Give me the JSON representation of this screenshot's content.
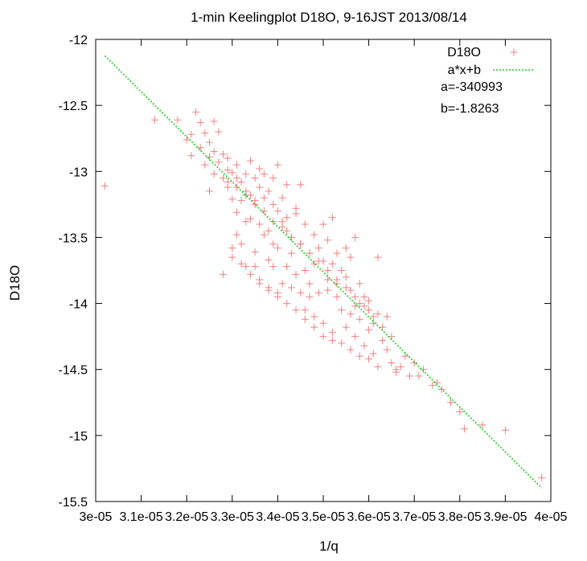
{
  "chart_data": {
    "type": "scatter",
    "title": "1-min Keelingplot D18O, 9-16JST 2013/08/14",
    "xlabel": "1/q",
    "ylabel": "D18O",
    "xlim": [
      3e-05,
      4e-05
    ],
    "ylim": [
      -15.5,
      -12.0
    ],
    "x_tick_values": [
      3e-05,
      3.1e-05,
      3.2e-05,
      3.3e-05,
      3.4e-05,
      3.5e-05,
      3.6e-05,
      3.7e-05,
      3.8e-05,
      3.9e-05,
      4e-05
    ],
    "x_tick_labels": [
      "3e-05",
      "3.1e-05",
      "3.2e-05",
      "3.3e-05",
      "3.4e-05",
      "3.5e-05",
      "3.6e-05",
      "3.7e-05",
      "3.8e-05",
      "3.9e-05",
      "4e-05"
    ],
    "y_tick_values": [
      -12.0,
      -12.5,
      -13.0,
      -13.5,
      -14.0,
      -14.5,
      -15.0,
      -15.5
    ],
    "y_tick_labels": [
      "-12",
      "-12.5",
      "-13",
      "-13.5",
      "-14",
      "-14.5",
      "-15",
      "-15.5"
    ],
    "grid": false,
    "legend_position": "top-right",
    "series": [
      {
        "name": "D18O",
        "mark": "plus",
        "color": "#f08080",
        "x": [
          3.02e-05,
          3.13e-05,
          3.18e-05,
          3.2e-05,
          3.21e-05,
          3.22e-05,
          3.23e-05,
          3.23e-05,
          3.24e-05,
          3.25e-05,
          3.25e-05,
          3.26e-05,
          3.26e-05,
          3.27e-05,
          3.27e-05,
          3.28e-05,
          3.28e-05,
          3.29e-05,
          3.29e-05,
          3.29e-05,
          3.3e-05,
          3.3e-05,
          3.3e-05,
          3.31e-05,
          3.31e-05,
          3.31e-05,
          3.32e-05,
          3.32e-05,
          3.32e-05,
          3.33e-05,
          3.33e-05,
          3.33e-05,
          3.34e-05,
          3.34e-05,
          3.34e-05,
          3.35e-05,
          3.35e-05,
          3.35e-05,
          3.36e-05,
          3.36e-05,
          3.36e-05,
          3.37e-05,
          3.37e-05,
          3.37e-05,
          3.38e-05,
          3.38e-05,
          3.38e-05,
          3.39e-05,
          3.39e-05,
          3.39e-05,
          3.4e-05,
          3.4e-05,
          3.4e-05,
          3.41e-05,
          3.41e-05,
          3.41e-05,
          3.42e-05,
          3.42e-05,
          3.42e-05,
          3.43e-05,
          3.43e-05,
          3.44e-05,
          3.44e-05,
          3.45e-05,
          3.45e-05,
          3.46e-05,
          3.46e-05,
          3.47e-05,
          3.47e-05,
          3.48e-05,
          3.48e-05,
          3.49e-05,
          3.49e-05,
          3.5e-05,
          3.5e-05,
          3.51e-05,
          3.51e-05,
          3.52e-05,
          3.52e-05,
          3.53e-05,
          3.53e-05,
          3.54e-05,
          3.54e-05,
          3.55e-05,
          3.55e-05,
          3.56e-05,
          3.56e-05,
          3.57e-05,
          3.57e-05,
          3.58e-05,
          3.58e-05,
          3.59e-05,
          3.59e-05,
          3.6e-05,
          3.6e-05,
          3.61e-05,
          3.61e-05,
          3.62e-05,
          3.63e-05,
          3.64e-05,
          3.65e-05,
          3.66e-05,
          3.67e-05,
          3.68e-05,
          3.69e-05,
          3.7e-05,
          3.72e-05,
          3.74e-05,
          3.76e-05,
          3.78e-05,
          3.8e-05,
          3.81e-05,
          3.85e-05,
          3.9e-05,
          3.98e-05,
          3.21e-05,
          3.24e-05,
          3.26e-05,
          3.29e-05,
          3.31e-05,
          3.33e-05,
          3.35e-05,
          3.37e-05,
          3.39e-05,
          3.41e-05,
          3.43e-05,
          3.45e-05,
          3.47e-05,
          3.49e-05,
          3.51e-05,
          3.53e-05,
          3.55e-05,
          3.57e-05,
          3.59e-05,
          3.61e-05,
          3.63e-05,
          3.65e-05,
          3.28e-05,
          3.3e-05,
          3.32e-05,
          3.34e-05,
          3.36e-05,
          3.38e-05,
          3.4e-05,
          3.42e-05,
          3.44e-05,
          3.46e-05,
          3.48e-05,
          3.5e-05,
          3.52e-05,
          3.54e-05,
          3.56e-05,
          3.58e-05,
          3.6e-05,
          3.62e-05,
          3.66e-05,
          3.71e-05,
          3.75e-05,
          3.4e-05,
          3.45e-05,
          3.52e-05,
          3.57e-05,
          3.62e-05,
          3.44e-05,
          3.5e-05,
          3.55e-05,
          3.36e-05,
          3.46e-05,
          3.33e-05,
          3.38e-05,
          3.43e-05,
          3.48e-05,
          3.53e-05,
          3.58e-05,
          3.39e-05,
          3.47e-05,
          3.56e-05,
          3.31e-05,
          3.42e-05,
          3.51e-05,
          3.6e-05,
          3.64e-05,
          3.25e-05,
          3.35e-05
        ],
        "y": [
          -13.11,
          -12.61,
          -12.61,
          -12.76,
          -12.72,
          -12.55,
          -12.82,
          -12.63,
          -12.71,
          -12.78,
          -12.89,
          -12.62,
          -12.85,
          -12.93,
          -12.7,
          -12.87,
          -13.05,
          -12.9,
          -13.12,
          -12.99,
          -13.01,
          -13.21,
          -13.58,
          -13.05,
          -12.95,
          -13.31,
          -13.08,
          -13.22,
          -13.55,
          -13.02,
          -13.15,
          -13.72,
          -12.92,
          -13.18,
          -13.36,
          -13.05,
          -13.25,
          -13.61,
          -13.12,
          -13.4,
          -13.85,
          -13.2,
          -13.02,
          -13.48,
          -13.15,
          -13.67,
          -13.9,
          -13.25,
          -13.05,
          -13.72,
          -13.3,
          -13.58,
          -13.95,
          -13.2,
          -13.85,
          -13.38,
          -13.45,
          -13.72,
          -13.1,
          -13.5,
          -13.88,
          -13.32,
          -13.78,
          -13.55,
          -13.92,
          -13.4,
          -14.05,
          -13.62,
          -13.85,
          -13.48,
          -14.1,
          -13.58,
          -13.92,
          -13.68,
          -14.15,
          -13.52,
          -13.82,
          -13.7,
          -14.22,
          -13.62,
          -13.95,
          -13.75,
          -14.05,
          -13.8,
          -14.18,
          -13.9,
          -13.65,
          -14.02,
          -14.25,
          -13.85,
          -14.12,
          -13.95,
          -14.32,
          -14.05,
          -14.2,
          -14.15,
          -14.38,
          -14.08,
          -14.28,
          -14.35,
          -14.45,
          -14.52,
          -14.48,
          -14.4,
          -14.55,
          -14.45,
          -14.5,
          -14.62,
          -14.65,
          -14.75,
          -14.82,
          -14.95,
          -14.92,
          -14.96,
          -15.32,
          -12.88,
          -12.95,
          -13.02,
          -13.08,
          -13.12,
          -13.18,
          -13.22,
          -13.3,
          -13.38,
          -13.42,
          -13.5,
          -13.55,
          -13.62,
          -13.68,
          -13.75,
          -13.82,
          -13.88,
          -13.95,
          -14.02,
          -14.1,
          -14.18,
          -14.25,
          -13.78,
          -13.65,
          -13.7,
          -13.78,
          -13.82,
          -13.88,
          -13.92,
          -14.0,
          -14.05,
          -14.12,
          -14.18,
          -14.25,
          -14.28,
          -14.3,
          -14.35,
          -14.4,
          -14.42,
          -14.48,
          -14.5,
          -14.55,
          -14.6,
          -12.95,
          -13.1,
          -13.35,
          -13.5,
          -13.65,
          -13.28,
          -13.4,
          -13.58,
          -12.98,
          -13.75,
          -13.38,
          -13.45,
          -13.62,
          -13.7,
          -13.85,
          -14.0,
          -13.55,
          -13.95,
          -14.08,
          -13.48,
          -13.35,
          -13.9,
          -13.98,
          -14.1,
          -13.15,
          -13.72
        ]
      },
      {
        "name": "a*x+b",
        "mark": "dotted-line",
        "color": "#22cc22",
        "x": [
          3.02e-05,
          3.98e-05
        ],
        "y": [
          -12.124,
          -15.398
        ]
      }
    ],
    "annotations": [
      "a=-340993",
      "b=-1.8263"
    ]
  }
}
